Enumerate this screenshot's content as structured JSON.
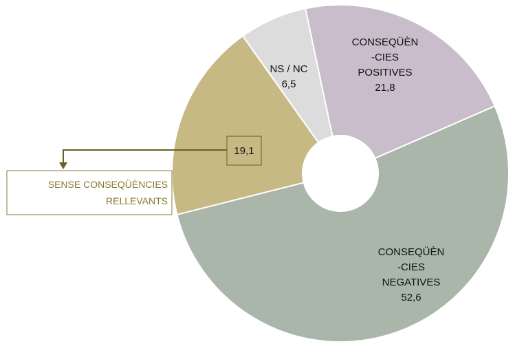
{
  "chart_data": {
    "type": "donut",
    "categories": [
      "CONSEQÜÈN\n-CIES\nPOSITIVES",
      "CONSEQÜÈN\n-CIES\nNEGATIVES",
      "SENSE CONSEQÜÈNCIES\nRELLEVANTS",
      "NS / NC"
    ],
    "values": [
      21.8,
      52.6,
      19.1,
      6.5
    ],
    "value_labels": [
      "21,8",
      "52,6",
      "19,1",
      "6,5"
    ],
    "colors": [
      "#c9bdcb",
      "#a9b6a9",
      "#c6b983",
      "#dcdcdc"
    ]
  }
}
